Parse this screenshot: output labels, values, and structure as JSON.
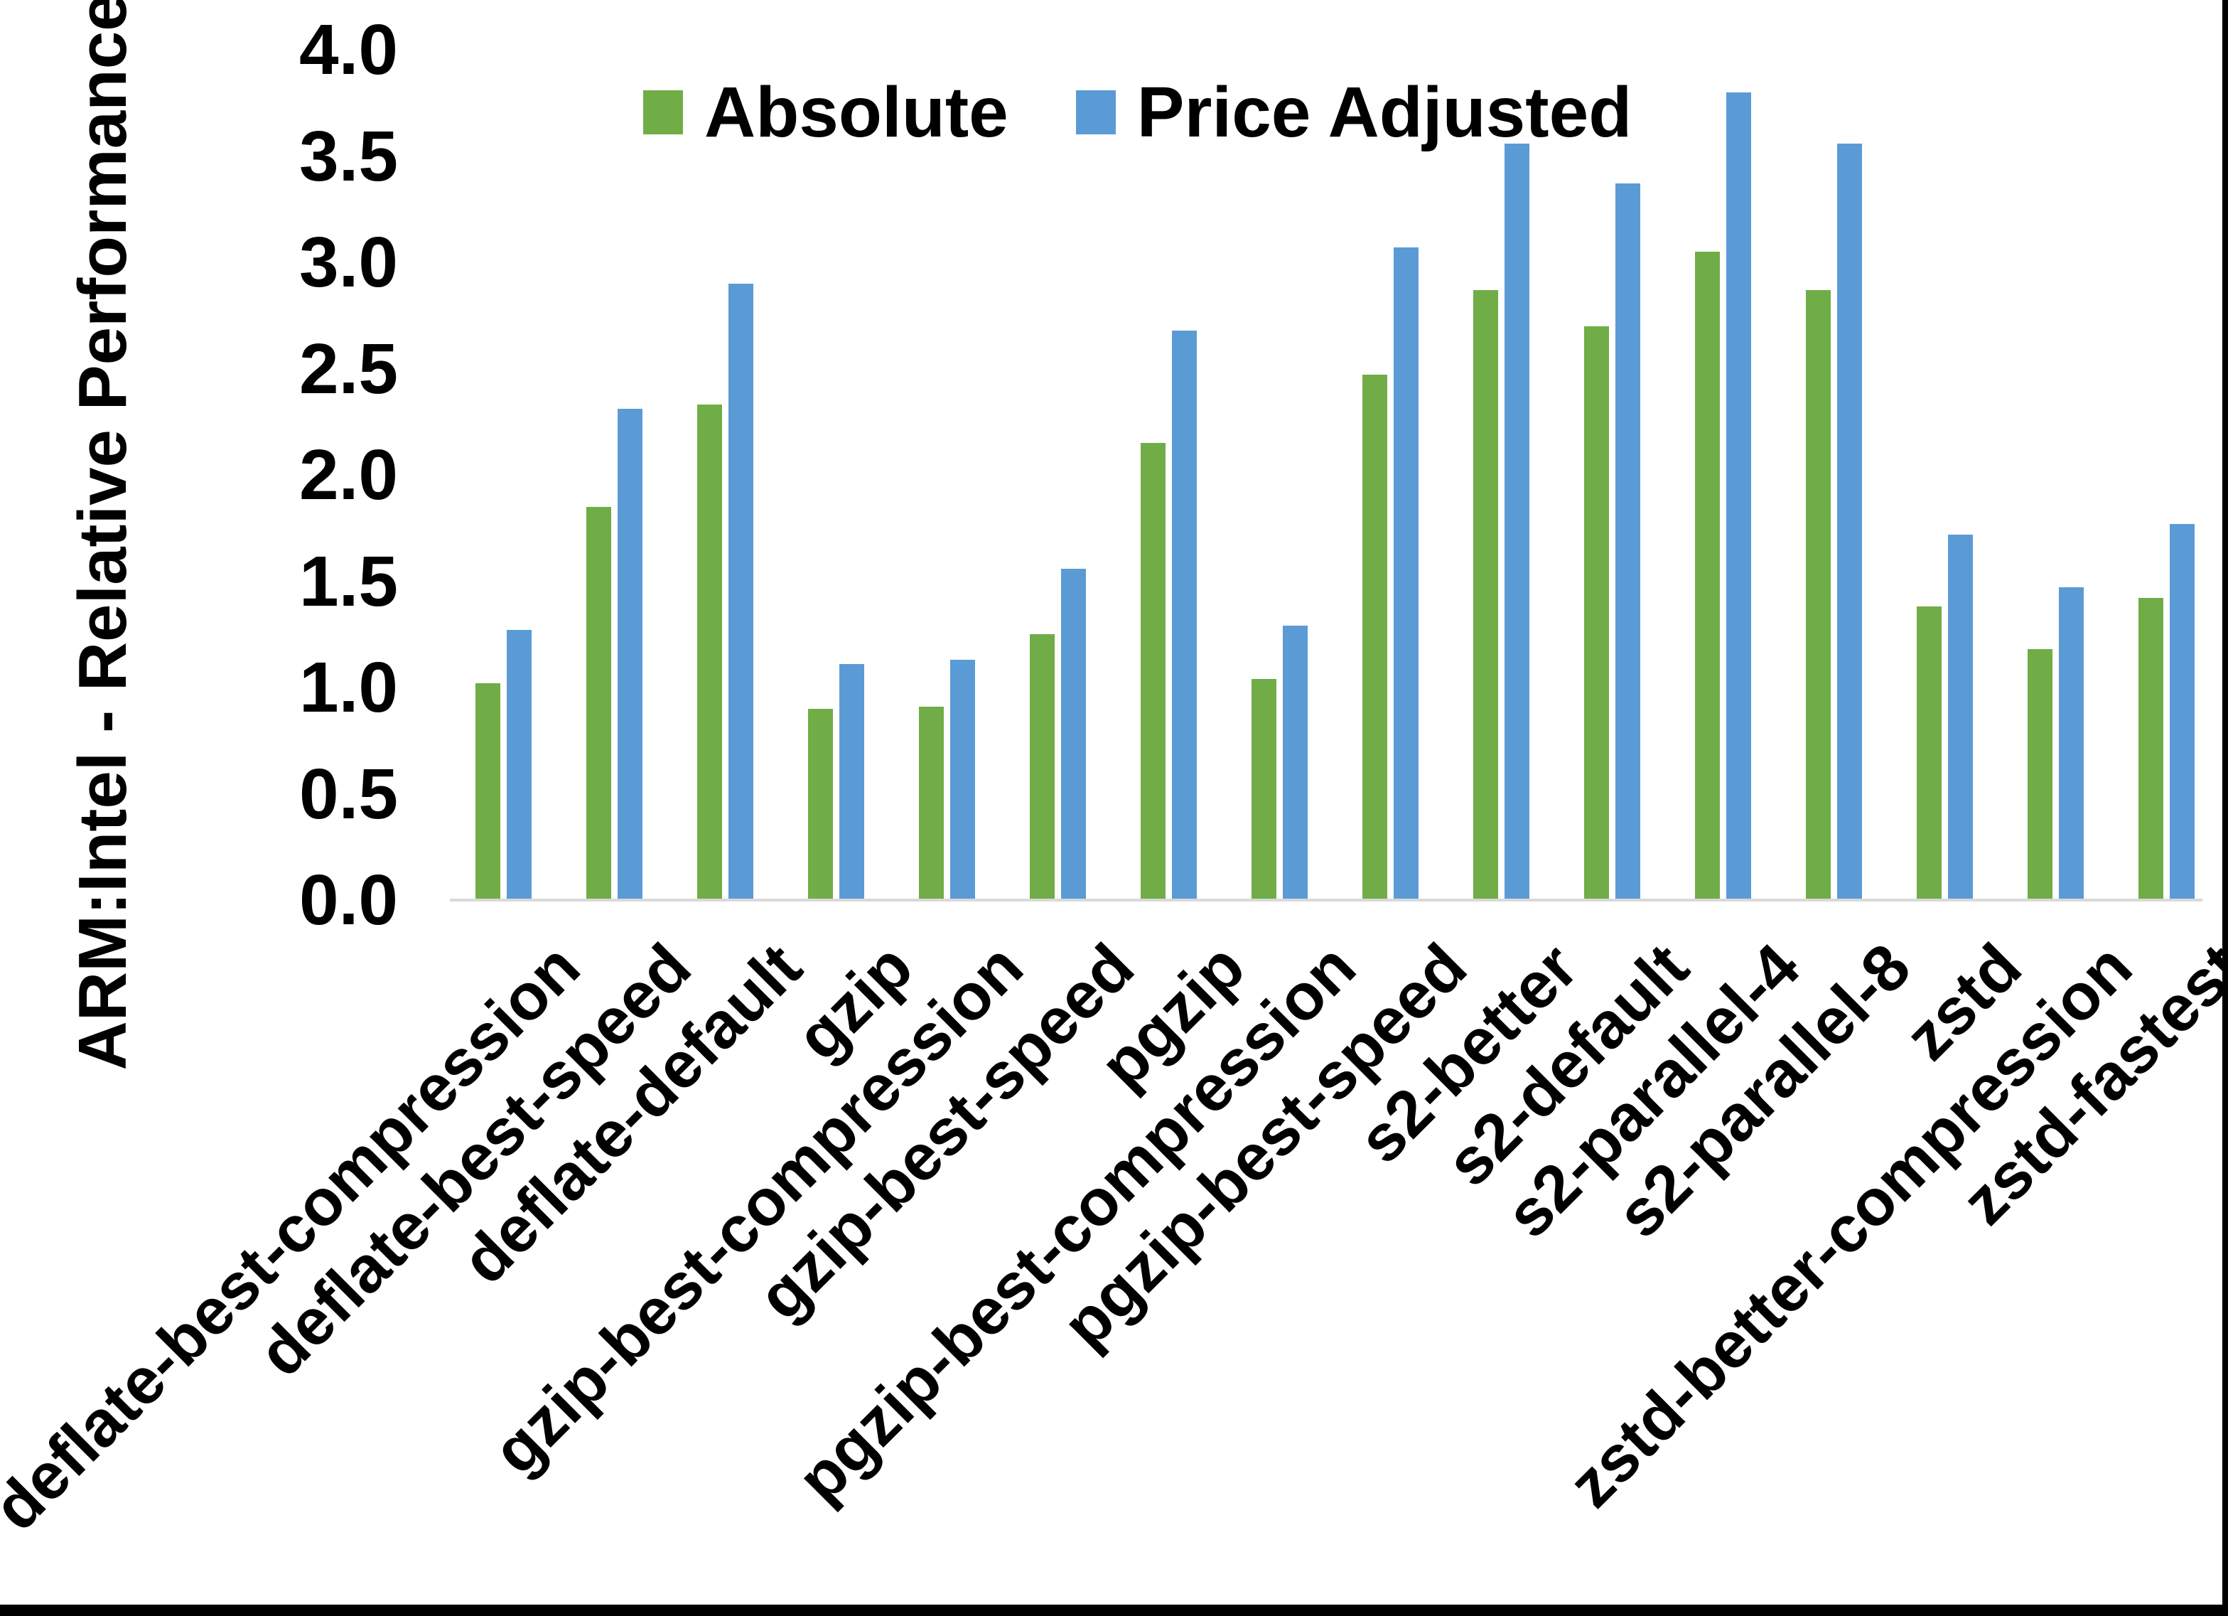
{
  "figure": {
    "ylabel": "ARM:Intel - Relative Performance",
    "background_color": "#FFFFFF",
    "frame_border_color": "#000000",
    "axis_line_color": "#D9D9D9",
    "text_color": "#000000"
  },
  "chart_data": {
    "type": "bar",
    "title": "",
    "xlabel": "",
    "ylabel": "ARM:Intel - Relative Performance",
    "ylim": [
      0.0,
      4.0
    ],
    "ytick_step": 0.5,
    "ytick_labels": [
      "0.0",
      "0.5",
      "1.0",
      "1.5",
      "2.0",
      "2.5",
      "3.0",
      "3.5",
      "4.0"
    ],
    "grid": false,
    "legend_position": "top-center",
    "categories": [
      "deflate-best-compression",
      "deflate-best-speed",
      "deflate-default",
      "gzip",
      "gzip-best-compression",
      "gzip-best-speed",
      "pgzip",
      "pgzip-best-compression",
      "pgzip-best-speed",
      "s2-better",
      "s2-default",
      "s2-parallel-4",
      "s2-parallel-8",
      "zstd",
      "zstd-better-compression",
      "zstd-fastest"
    ],
    "series": [
      {
        "name": "Absolute",
        "color": "#70AD47",
        "values": [
          1.02,
          1.85,
          2.33,
          0.9,
          0.91,
          1.25,
          2.15,
          1.04,
          2.47,
          2.87,
          2.7,
          3.05,
          2.87,
          1.38,
          1.18,
          1.42
        ]
      },
      {
        "name": "Price Adjusted",
        "color": "#5B9BD5",
        "values": [
          1.27,
          2.31,
          2.9,
          1.11,
          1.13,
          1.56,
          2.68,
          1.29,
          3.07,
          3.56,
          3.37,
          3.8,
          3.56,
          1.72,
          1.47,
          1.77
        ]
      }
    ]
  }
}
